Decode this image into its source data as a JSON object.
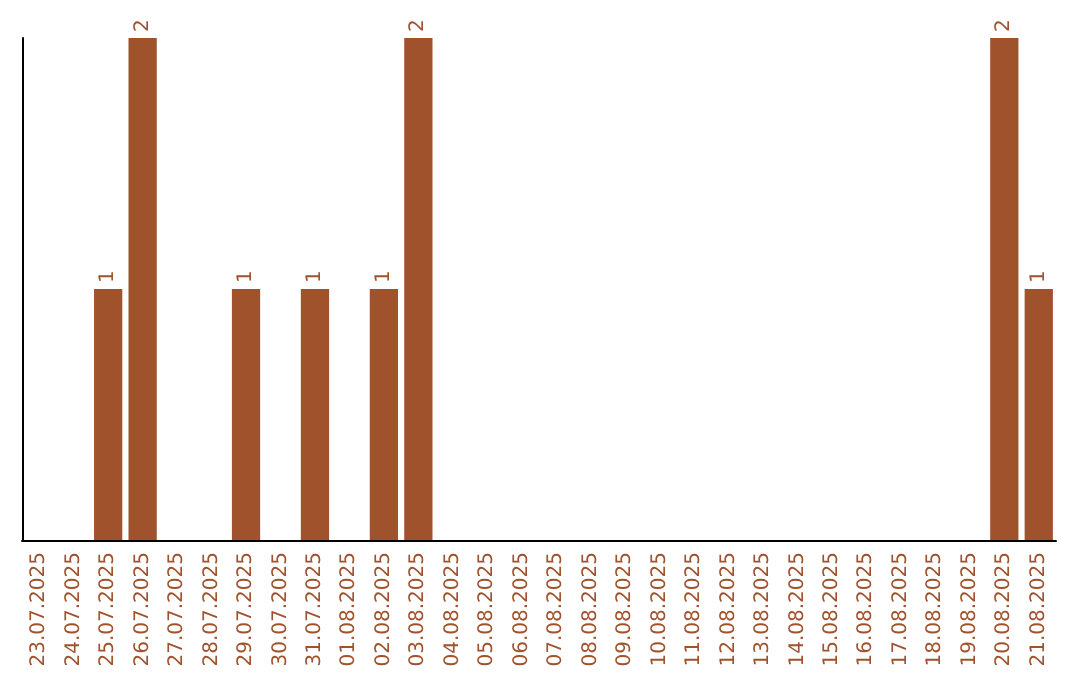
{
  "chart_data": {
    "type": "bar",
    "categories": [
      "23.07.2025",
      "24.07.2025",
      "25.07.2025",
      "26.07.2025",
      "27.07.2025",
      "28.07.2025",
      "29.07.2025",
      "30.07.2025",
      "31.07.2025",
      "01.08.2025",
      "02.08.2025",
      "03.08.2025",
      "04.08.2025",
      "05.08.2025",
      "06.08.2025",
      "07.08.2025",
      "08.08.2025",
      "09.08.2025",
      "10.08.2025",
      "11.08.2025",
      "12.08.2025",
      "13.08.2025",
      "14.08.2025",
      "15.08.2025",
      "16.08.2025",
      "17.08.2025",
      "18.08.2025",
      "19.08.2025",
      "20.08.2025",
      "21.08.2025"
    ],
    "values": [
      0,
      0,
      1,
      2,
      0,
      0,
      1,
      0,
      1,
      0,
      1,
      2,
      0,
      0,
      0,
      0,
      0,
      0,
      0,
      0,
      0,
      0,
      0,
      0,
      0,
      0,
      0,
      0,
      2,
      1
    ],
    "value_labels": [
      null,
      null,
      "1",
      "2",
      null,
      null,
      "1",
      null,
      "1",
      null,
      "1",
      "2",
      null,
      null,
      null,
      null,
      null,
      null,
      null,
      null,
      null,
      null,
      null,
      null,
      null,
      null,
      null,
      null,
      "2",
      "1"
    ],
    "color": "#a0522d",
    "ylim": [
      0,
      2
    ],
    "tick_labels": "x"
  }
}
